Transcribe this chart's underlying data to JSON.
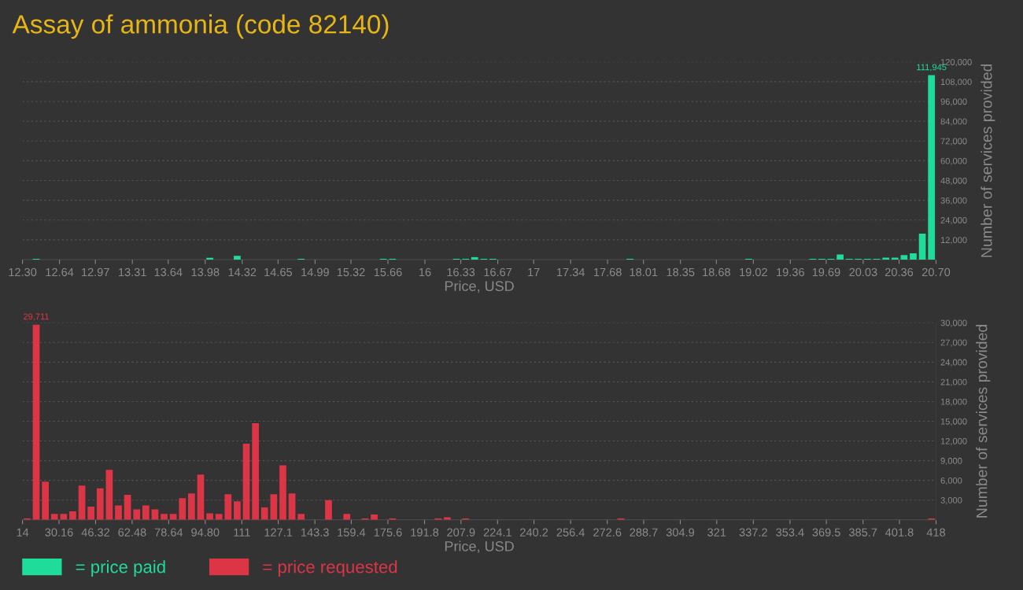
{
  "chart_data": [
    {
      "type": "histogram",
      "title": "Assay of ammonia (code 82140)",
      "xlabel": "Price, USD",
      "ylabel": "Number of services provided",
      "bins": [
        12.3,
        12.384,
        12.468,
        12.552,
        12.636,
        12.72,
        12.804,
        12.888,
        12.972,
        13.056,
        13.14,
        13.224,
        13.308,
        13.392,
        13.476,
        13.56,
        13.644,
        13.728,
        13.812,
        13.896,
        13.98,
        14.064,
        14.148,
        14.232,
        14.316,
        14.4,
        14.484,
        14.568,
        14.652,
        14.736,
        14.82,
        14.904,
        14.988,
        15.072,
        15.156,
        15.24,
        15.324,
        15.408,
        15.492,
        15.576,
        15.66,
        15.744,
        15.828,
        15.912,
        15.996,
        16.08,
        16.164,
        16.248,
        16.332,
        16.416,
        16.5,
        16.584,
        16.668,
        16.752,
        16.836,
        16.92,
        17.004,
        17.088,
        17.172,
        17.256,
        17.34,
        17.424,
        17.508,
        17.592,
        17.676,
        17.76,
        17.844,
        17.928,
        18.012,
        18.096,
        18.18,
        18.264,
        18.348,
        18.432,
        18.516,
        18.6,
        18.684,
        18.768,
        18.852,
        18.936,
        19.02,
        19.104,
        19.188,
        19.272,
        19.356,
        19.44,
        19.524,
        19.608,
        19.692,
        19.776,
        19.86,
        19.944,
        20.028,
        20.112,
        20.196,
        20.28,
        20.364,
        20.448,
        20.532,
        20.616,
        20.7
      ],
      "series": [
        {
          "name": "= price paid",
          "color": "#1fdc9a",
          "values": [
            0,
            500,
            0,
            0,
            0,
            0,
            0,
            0,
            0,
            0,
            0,
            0,
            0,
            0,
            0,
            0,
            0,
            0,
            0,
            0,
            1100,
            0,
            0,
            2300,
            0,
            0,
            0,
            0,
            0,
            0,
            500,
            0,
            0,
            0,
            0,
            0,
            0,
            0,
            0,
            500,
            500,
            0,
            0,
            0,
            0,
            0,
            0,
            500,
            500,
            1500,
            500,
            500,
            0,
            0,
            0,
            0,
            0,
            0,
            0,
            0,
            0,
            0,
            0,
            0,
            0,
            0,
            500,
            0,
            0,
            0,
            0,
            0,
            0,
            0,
            0,
            0,
            0,
            0,
            0,
            500,
            0,
            0,
            0,
            0,
            0,
            0,
            500,
            500,
            500,
            3100,
            500,
            500,
            500,
            500,
            1200,
            1200,
            2700,
            3800,
            15800,
            111945
          ],
          "value_labels": [
            null,
            null,
            null,
            null,
            null,
            null,
            null,
            null,
            null,
            null,
            null,
            null,
            null,
            null,
            null,
            null,
            null,
            null,
            null,
            null,
            null,
            null,
            null,
            null,
            null,
            null,
            null,
            null,
            null,
            null,
            null,
            null,
            null,
            null,
            null,
            null,
            null,
            null,
            null,
            null,
            null,
            null,
            null,
            null,
            null,
            null,
            null,
            null,
            null,
            null,
            null,
            null,
            null,
            null,
            null,
            null,
            null,
            null,
            null,
            null,
            null,
            null,
            null,
            null,
            null,
            null,
            null,
            null,
            null,
            null,
            null,
            null,
            null,
            null,
            null,
            null,
            null,
            null,
            null,
            null,
            null,
            null,
            null,
            null,
            null,
            null,
            null,
            null,
            null,
            null,
            null,
            null,
            null,
            null,
            null,
            null,
            null,
            null,
            null,
            "111,945"
          ]
        }
      ],
      "xlim": [
        12.3,
        20.7
      ],
      "xticks": [
        {
          "value": 12.3,
          "label": "12.30"
        },
        12.64,
        12.97,
        13.31,
        13.64,
        13.98,
        14.32,
        14.65,
        14.99,
        15.32,
        15.66,
        16,
        16.33,
        16.67,
        17,
        17.34,
        17.68,
        18.01,
        18.35,
        18.68,
        19.02,
        19.36,
        19.69,
        20.03,
        20.36,
        {
          "value": 20.7,
          "label": "20.70"
        }
      ],
      "ylim": [
        0,
        120000
      ],
      "yticks": [
        {
          "value": 12000,
          "label": "12,000"
        },
        {
          "value": 24000,
          "label": "24,000"
        },
        {
          "value": 36000,
          "label": "36,000"
        },
        {
          "value": 48000,
          "label": "48,000"
        },
        {
          "value": 60000,
          "label": "60,000"
        },
        {
          "value": 72000,
          "label": "72,000"
        },
        {
          "value": 84000,
          "label": "84,000"
        },
        {
          "value": 96000,
          "label": "96,000"
        },
        {
          "value": 108000,
          "label": "108,000"
        },
        {
          "value": 120000,
          "label": "120,000"
        }
      ],
      "grid": "y",
      "legend": "bottom left"
    },
    {
      "type": "histogram",
      "xlabel": "Price, USD",
      "ylabel": "Number of services provided",
      "bins": [
        14,
        18.04,
        22.08,
        26.12,
        30.16,
        34.2,
        38.24,
        42.28,
        46.32,
        50.36,
        54.4,
        58.44,
        62.48,
        66.52,
        70.56,
        74.6,
        78.64,
        82.68,
        86.72,
        90.76,
        94.8,
        98.84,
        102.88,
        106.92,
        110.96,
        115,
        119.04,
        123.08,
        127.12,
        131.16,
        135.2,
        139.24,
        143.28,
        147.32,
        151.36,
        155.4,
        159.44,
        163.48,
        167.52,
        171.56,
        175.6,
        179.64,
        183.68,
        187.72,
        191.76,
        195.8,
        199.84,
        203.88,
        207.92,
        211.96,
        216,
        220.04,
        224.08,
        228.12,
        232.16,
        236.2,
        240.24,
        244.28,
        248.32,
        252.36,
        256.4,
        260.44,
        264.48,
        268.52,
        272.56,
        276.6,
        280.64,
        284.68,
        288.72,
        292.76,
        296.8,
        300.84,
        304.88,
        308.92,
        312.96,
        317,
        321.04,
        325.08,
        329.12,
        333.16,
        337.2,
        341.24,
        345.28,
        349.32,
        353.36,
        357.4,
        361.44,
        365.48,
        369.52,
        373.56,
        377.6,
        381.64,
        385.68,
        389.72,
        393.76,
        397.8,
        401.84,
        405.88,
        409.92,
        413.96,
        418
      ],
      "series": [
        {
          "name": "= price requested",
          "color": "#dc3545",
          "values": [
            200,
            29711,
            5800,
            900,
            900,
            1300,
            5200,
            2000,
            4800,
            7600,
            2200,
            3800,
            1600,
            2200,
            1600,
            900,
            900,
            3300,
            4000,
            6900,
            1000,
            900,
            3900,
            2800,
            11600,
            14700,
            1900,
            3900,
            8300,
            4000,
            900,
            0,
            0,
            3000,
            0,
            900,
            0,
            200,
            800,
            0,
            200,
            0,
            0,
            0,
            0,
            200,
            400,
            0,
            200,
            0,
            0,
            0,
            0,
            0,
            0,
            0,
            0,
            0,
            0,
            0,
            0,
            0,
            0,
            0,
            0,
            200,
            0,
            0,
            0,
            0,
            0,
            0,
            0,
            0,
            0,
            0,
            0,
            0,
            0,
            0,
            0,
            0,
            0,
            0,
            0,
            0,
            0,
            0,
            0,
            0,
            0,
            0,
            0,
            0,
            0,
            0,
            0,
            0,
            0,
            200
          ],
          "value_labels": [
            null,
            "29,711",
            null,
            null,
            null,
            null,
            null,
            null,
            null,
            null,
            null,
            null,
            null,
            null,
            null,
            null,
            null,
            null,
            null,
            null,
            null,
            null,
            null,
            null,
            null,
            null,
            null,
            null,
            null,
            null,
            null,
            null,
            null,
            null,
            null,
            null,
            null,
            null,
            null,
            null,
            null,
            null,
            null,
            null,
            null,
            null,
            null,
            null,
            null,
            null,
            null,
            null,
            null,
            null,
            null,
            null,
            null,
            null,
            null,
            null,
            null,
            null,
            null,
            null,
            null,
            null,
            null,
            null,
            null,
            null,
            null,
            null,
            null,
            null,
            null,
            null,
            null,
            null,
            null,
            null,
            null,
            null,
            null,
            null,
            null,
            null,
            null,
            null,
            null,
            null,
            null,
            null,
            null,
            null,
            null,
            null,
            null,
            null,
            null,
            null
          ]
        }
      ],
      "xlim": [
        14,
        418
      ],
      "xticks": [
        14,
        30.16,
        46.32,
        62.48,
        78.64,
        {
          "value": 94.8,
          "label": "94.80"
        },
        111,
        127.1,
        143.3,
        159.4,
        175.6,
        191.8,
        207.9,
        224.1,
        240.2,
        256.4,
        272.6,
        288.7,
        304.9,
        321,
        337.2,
        353.4,
        369.5,
        385.7,
        401.8,
        418
      ],
      "ylim": [
        0,
        30000
      ],
      "yticks": [
        {
          "value": 3000,
          "label": "3,000"
        },
        {
          "value": 6000,
          "label": "6,000"
        },
        {
          "value": 9000,
          "label": "9,000"
        },
        {
          "value": 12000,
          "label": "12,000"
        },
        {
          "value": 15000,
          "label": "15,000"
        },
        {
          "value": 18000,
          "label": "18,000"
        },
        {
          "value": 21000,
          "label": "21,000"
        },
        {
          "value": 24000,
          "label": "24,000"
        },
        {
          "value": 27000,
          "label": "27,000"
        },
        {
          "value": 30000,
          "label": "30,000"
        }
      ],
      "grid": "y",
      "legend": "bottom left"
    }
  ]
}
